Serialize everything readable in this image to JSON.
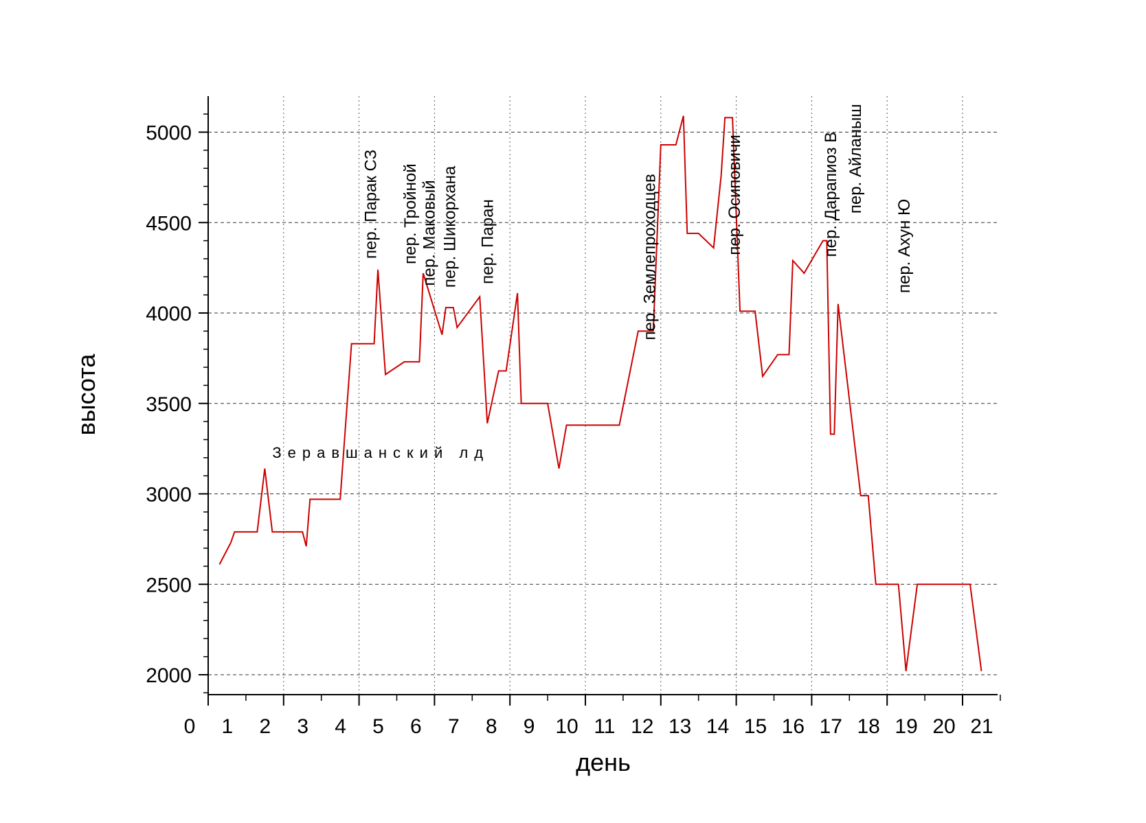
{
  "chart_data": {
    "type": "line",
    "xlabel": "день",
    "ylabel": "высота",
    "xlim": [
      0,
      21
    ],
    "ylim": [
      2000,
      5200
    ],
    "xticks": [
      "0",
      "1",
      "2",
      "3",
      "4",
      "5",
      "6",
      "7",
      "8",
      "9",
      "10",
      "11",
      "12",
      "13",
      "14",
      "15",
      "16",
      "17",
      "18",
      "19",
      "20",
      "21"
    ],
    "yticks": [
      "2000",
      "2500",
      "3000",
      "3500",
      "4000",
      "4500",
      "5000"
    ],
    "grid": true,
    "line_color": "#cc0000",
    "series": [
      {
        "x": [
          0.3,
          0.6,
          0.7,
          1.3,
          1.5,
          1.7,
          2.0,
          2.5,
          2.6,
          2.7,
          3.0,
          3.5,
          3.8,
          4.2,
          4.4,
          4.5,
          4.7,
          5.2,
          5.4,
          5.5,
          5.6,
          5.7,
          6.2,
          6.3,
          6.4,
          6.5,
          6.6,
          7.2,
          7.4,
          7.7,
          7.9,
          8.2,
          8.3,
          8.5,
          9.0,
          9.3,
          9.5,
          10.2,
          10.4,
          10.9,
          11.4,
          11.8,
          12.0,
          12.4,
          12.6,
          12.7,
          12.9,
          13.0,
          13.4,
          13.6,
          13.7,
          13.9,
          14.1,
          14.5,
          14.7,
          15.1,
          15.3,
          15.4,
          15.5,
          15.8,
          16.3,
          16.4,
          16.5,
          16.6,
          16.7,
          17.3,
          17.5,
          17.7,
          18.1,
          18.3,
          18.5,
          18.8,
          19.1,
          19.4,
          19.7,
          20.0,
          20.2,
          20.5
        ],
        "y": [
          2610,
          2730,
          2790,
          2790,
          3140,
          2790,
          2790,
          2790,
          2710,
          2970,
          2970,
          2970,
          3830,
          3830,
          3830,
          4240,
          3660,
          3730,
          3730,
          3730,
          3730,
          4220,
          3880,
          4030,
          4030,
          4030,
          3920,
          4090,
          3390,
          3680,
          3680,
          4110,
          3500,
          3500,
          3500,
          3140,
          3380,
          3380,
          3380,
          3380,
          3900,
          3900,
          4930,
          4930,
          5090,
          4440,
          4440,
          4440,
          4360,
          4760,
          5080,
          5080,
          4010,
          4010,
          3650,
          3770,
          3770,
          3770,
          4290,
          4220,
          4400,
          4400,
          3330,
          3330,
          4050,
          2990,
          2990,
          2500,
          2500,
          2500,
          2020,
          2500,
          2500,
          2500,
          2500,
          2500,
          2500,
          2020
        ]
      }
    ],
    "annotations": [
      {
        "text": "Зеравшанский лд",
        "x": 1.7,
        "y": 3200,
        "rotation": 0
      },
      {
        "text": "пер. Парак СЗ",
        "x": 4.45,
        "y": 4300,
        "rotation": 90
      },
      {
        "text": "пер. Тройной",
        "x": 5.5,
        "y": 4270,
        "rotation": 90
      },
      {
        "text": "пер. Маковый",
        "x": 6.0,
        "y": 4150,
        "rotation": 90
      },
      {
        "text": "пер. Шикорхана",
        "x": 6.55,
        "y": 4140,
        "rotation": 90
      },
      {
        "text": "пер. Паран",
        "x": 7.55,
        "y": 4160,
        "rotation": 90
      },
      {
        "text": "пер. Землепроходцев",
        "x": 11.85,
        "y": 3850,
        "rotation": 90
      },
      {
        "text": "пер. Осиповичи",
        "x": 14.1,
        "y": 4320,
        "rotation": 90
      },
      {
        "text": "пер. Дарапиоз В",
        "x": 16.65,
        "y": 4310,
        "rotation": 90
      },
      {
        "text": "пер. Айланыш",
        "x": 17.3,
        "y": 4550,
        "rotation": 90
      },
      {
        "text": "пер. Ахун Ю",
        "x": 18.6,
        "y": 4110,
        "rotation": 90
      }
    ]
  }
}
